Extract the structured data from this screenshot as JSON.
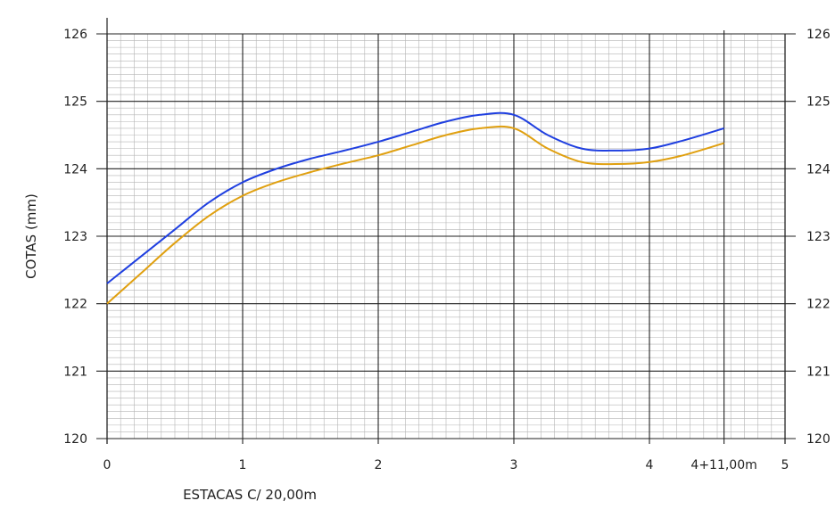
{
  "chart_data": {
    "type": "line",
    "xlabel": "ESTACAS C/ 20,00m",
    "ylabel": "COTAS (mm)",
    "xlim": [
      0,
      5
    ],
    "ylim": [
      120,
      126
    ],
    "x_ticks": [
      {
        "value": 0,
        "label": "0"
      },
      {
        "value": 1,
        "label": "1"
      },
      {
        "value": 2,
        "label": "2"
      },
      {
        "value": 3,
        "label": "3"
      },
      {
        "value": 4,
        "label": "4"
      },
      {
        "value": 4.55,
        "label": "4+11,00m"
      },
      {
        "value": 5,
        "label": "5"
      }
    ],
    "y_ticks": [
      120,
      121,
      122,
      123,
      124,
      125,
      126
    ],
    "grid": true,
    "series": [
      {
        "color": "#1f3fe0",
        "x": [
          0,
          0.25,
          0.5,
          0.75,
          1.0,
          1.25,
          1.5,
          1.75,
          2.0,
          2.25,
          2.5,
          2.75,
          3.0,
          3.25,
          3.5,
          3.75,
          4.0,
          4.25,
          4.55
        ],
        "y": [
          122.3,
          122.7,
          123.1,
          123.5,
          123.8,
          124.0,
          124.15,
          124.27,
          124.4,
          124.55,
          124.7,
          124.8,
          124.8,
          124.5,
          124.3,
          124.27,
          124.3,
          124.42,
          124.6
        ]
      },
      {
        "color": "#e0a010",
        "x": [
          0,
          0.25,
          0.5,
          0.75,
          1.0,
          1.25,
          1.5,
          1.75,
          2.0,
          2.25,
          2.5,
          2.75,
          3.0,
          3.25,
          3.5,
          3.75,
          4.0,
          4.25,
          4.55
        ],
        "y": [
          122.0,
          122.45,
          122.9,
          123.3,
          123.6,
          123.8,
          123.95,
          124.08,
          124.2,
          124.35,
          124.5,
          124.6,
          124.6,
          124.3,
          124.1,
          124.07,
          124.1,
          124.2,
          124.38
        ]
      }
    ]
  }
}
